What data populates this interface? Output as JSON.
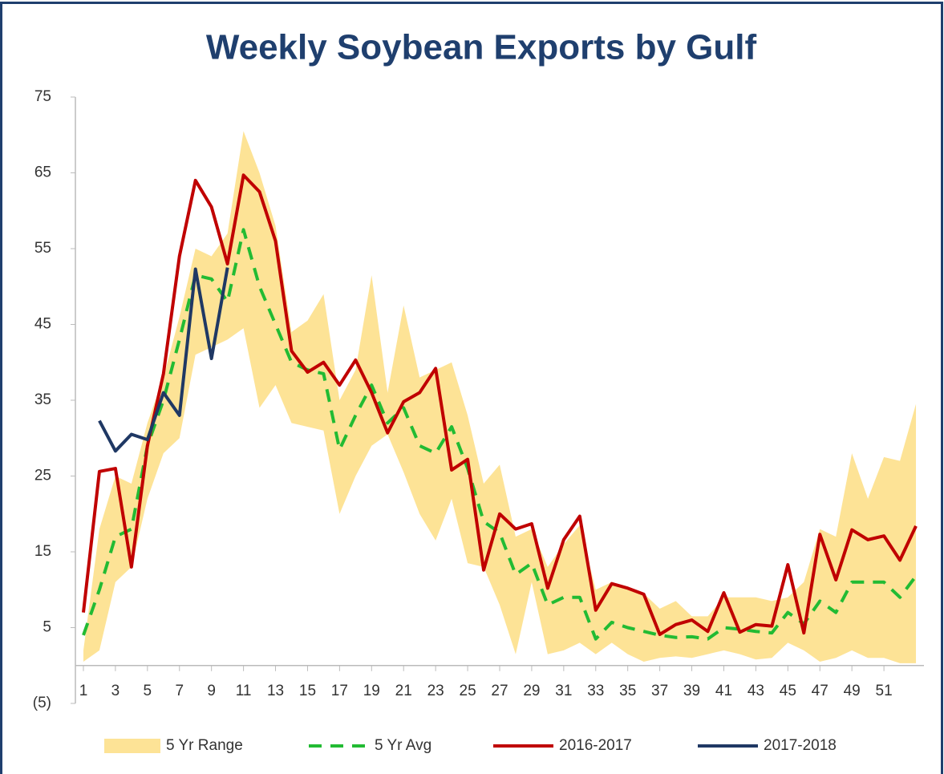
{
  "chart_data": {
    "type": "line",
    "title": "Weekly Soybean Exports by Gulf",
    "x": [
      1,
      2,
      3,
      4,
      5,
      6,
      7,
      8,
      9,
      10,
      11,
      12,
      13,
      14,
      15,
      16,
      17,
      18,
      19,
      20,
      21,
      22,
      23,
      24,
      25,
      26,
      27,
      28,
      29,
      30,
      31,
      32,
      33,
      34,
      35,
      36,
      37,
      38,
      39,
      40,
      41,
      42,
      43,
      44,
      45,
      46,
      47,
      48,
      49,
      50,
      51,
      52,
      53
    ],
    "xlim": [
      0.5,
      53.5
    ],
    "xticks": [
      1,
      3,
      5,
      7,
      9,
      11,
      13,
      15,
      17,
      19,
      21,
      23,
      25,
      27,
      29,
      31,
      33,
      35,
      37,
      39,
      41,
      43,
      45,
      47,
      49,
      51
    ],
    "ylim": [
      -5,
      75
    ],
    "yticks": [
      {
        "value": -5,
        "label": "(5)"
      },
      5,
      15,
      25,
      35,
      45,
      55,
      65,
      75
    ],
    "legend": "bottom",
    "range": {
      "name": "5 Yr Range",
      "color": "#fde396",
      "low": [
        0.5,
        2,
        11,
        13,
        22,
        28,
        30,
        41,
        42,
        43,
        44.5,
        34,
        37,
        32,
        31.5,
        31,
        20,
        25,
        29,
        30.5,
        25.5,
        20,
        16.5,
        22,
        13.5,
        13,
        8,
        1.5,
        11,
        1.5,
        2,
        3,
        1.5,
        3,
        1.5,
        0.5,
        1,
        1.2,
        1,
        1.5,
        2,
        1.5,
        0.8,
        1,
        3,
        2,
        0.5,
        1,
        2,
        1,
        1,
        0.3,
        0.3
      ],
      "high": [
        2,
        18,
        25,
        24,
        32,
        38,
        46,
        55,
        54,
        57,
        70.5,
        65,
        58,
        44,
        45.5,
        49,
        35,
        39,
        51.5,
        36,
        47.5,
        38,
        39,
        40,
        33,
        24,
        26.5,
        17,
        18,
        13,
        16,
        18.5,
        10,
        11,
        10,
        9.5,
        7.5,
        8.5,
        6.5,
        6.5,
        9,
        9,
        9,
        8.5,
        9,
        11,
        18,
        17,
        28,
        22,
        27.5,
        27,
        34.5
      ]
    },
    "series": [
      {
        "name": "5 Yr Avg",
        "color": "#22bb33",
        "dashed": true,
        "values": [
          4,
          10,
          17,
          18,
          29,
          35,
          43,
          51.5,
          51,
          48,
          57.5,
          50,
          45,
          40,
          39,
          38.5,
          28.5,
          33,
          37,
          32,
          34,
          29,
          28,
          31.5,
          26,
          19,
          17.5,
          12,
          13.5,
          8,
          9,
          9,
          3.5,
          5.7,
          5,
          4.5,
          4,
          3.7,
          3.8,
          3.5,
          5,
          4.8,
          4.5,
          4.3,
          7,
          5.5,
          8.5,
          7,
          11,
          11,
          11,
          9,
          11.8
        ]
      },
      {
        "name": "2016-2017",
        "color": "#c00000",
        "values": [
          7,
          25.6,
          26,
          13,
          29,
          38.5,
          54,
          64,
          60.5,
          53,
          64.7,
          62.5,
          56,
          41.5,
          38.7,
          40,
          37,
          40.3,
          36,
          30.7,
          34.8,
          36,
          39.2,
          25.8,
          27.2,
          12.6,
          20,
          18,
          18.7,
          10.2,
          16.6,
          19.7,
          7.3,
          10.8,
          10.2,
          9.4,
          4.1,
          5.4,
          6,
          4.5,
          9.6,
          4.4,
          5.4,
          5.2,
          13.3,
          4.3,
          17.3,
          11.3,
          17.9,
          16.6,
          17.1,
          13.9,
          18.4
        ]
      },
      {
        "name": "2017-2018",
        "color": "#1f3864",
        "values": [
          null,
          32.3,
          28.3,
          30.5,
          29.8,
          36,
          33,
          52.3,
          40.5,
          52.5,
          null,
          null,
          null,
          null,
          null,
          null,
          null,
          null,
          null,
          null,
          null,
          null,
          null,
          null,
          null,
          null,
          null,
          null,
          null,
          null,
          null,
          null,
          null,
          null,
          null,
          null,
          null,
          null,
          null,
          null,
          null,
          null,
          null,
          null,
          null,
          null,
          null,
          null,
          null,
          null,
          null,
          null,
          null
        ]
      }
    ]
  }
}
